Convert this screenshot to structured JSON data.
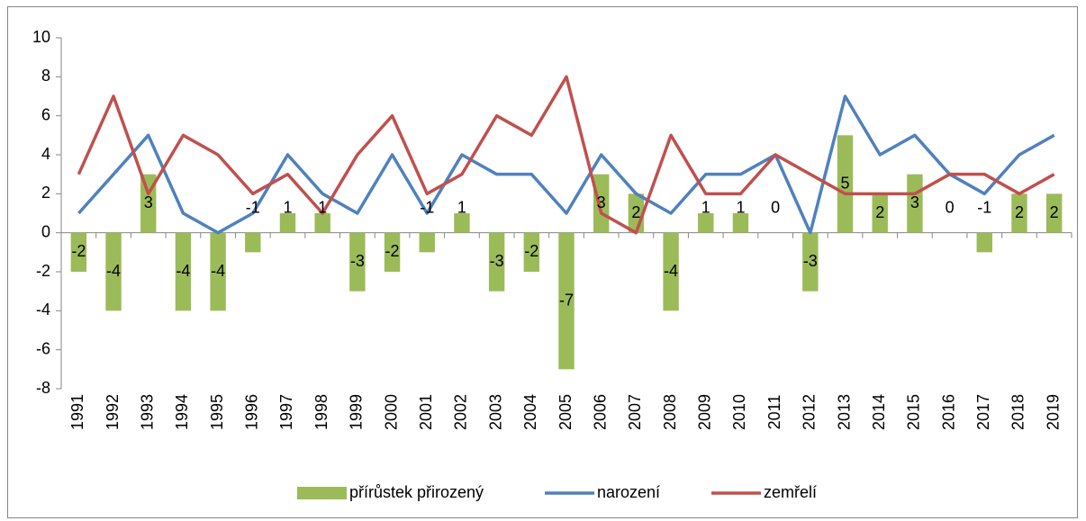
{
  "chart_data": {
    "type": "bar-line",
    "categories": [
      "1991",
      "1992",
      "1993",
      "1994",
      "1995",
      "1996",
      "1997",
      "1998",
      "1999",
      "2000",
      "2001",
      "2002",
      "2003",
      "2004",
      "2005",
      "2006",
      "2007",
      "2008",
      "2009",
      "2010",
      "2011",
      "2012",
      "2013",
      "2014",
      "2015",
      "2016",
      "2017",
      "2018",
      "2019"
    ],
    "series": [
      {
        "name": "přírůstek přirozený",
        "type": "bar",
        "color": "#9bbb59",
        "values": [
          -2,
          -4,
          3,
          -4,
          -4,
          -1,
          1,
          1,
          -3,
          -2,
          -1,
          1,
          -3,
          -2,
          -7,
          3,
          2,
          -4,
          1,
          1,
          0,
          -3,
          5,
          2,
          3,
          0,
          -1,
          2,
          2
        ]
      },
      {
        "name": "narození",
        "type": "line",
        "color": "#4f81bd",
        "values": [
          1,
          3,
          5,
          1,
          0,
          1,
          4,
          2,
          1,
          4,
          1,
          4,
          3,
          3,
          1,
          4,
          2,
          1,
          3,
          3,
          4,
          0,
          7,
          4,
          5,
          3,
          2,
          4,
          5
        ]
      },
      {
        "name": "zemřelí",
        "type": "line",
        "color": "#c0504d",
        "values": [
          3,
          7,
          2,
          5,
          4,
          2,
          3,
          1,
          4,
          6,
          2,
          3,
          6,
          5,
          8,
          1,
          0,
          5,
          2,
          2,
          4,
          3,
          2,
          2,
          2,
          3,
          3,
          2,
          3
        ]
      }
    ],
    "ylim": [
      -8,
      10
    ],
    "yticks": [
      -8,
      -6,
      -4,
      -2,
      0,
      2,
      4,
      6,
      8,
      10
    ],
    "grid": false,
    "legend": "bottom"
  }
}
